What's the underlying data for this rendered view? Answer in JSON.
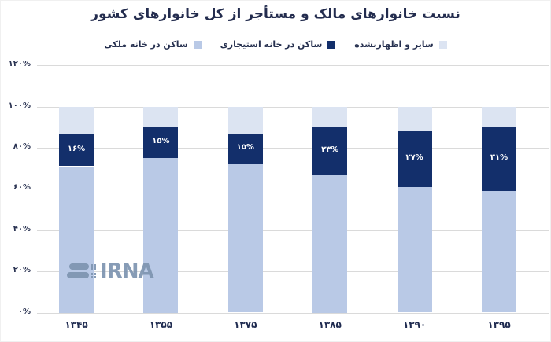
{
  "title": "نسبت خانوارهای مالک و مستأجر از کل خانوارهای کشور",
  "watermark": {
    "text": "IRNA",
    "icon": "irna-logo-icon",
    "color": "#7e95b1"
  },
  "colors": {
    "background": "#ffffff",
    "grid": "#dadada",
    "dark_text": "#232c4e",
    "bar_label_text": "#ffffff"
  },
  "chart_data": {
    "type": "bar",
    "stacked": true,
    "orientation": "vertical",
    "title": "نسبت خانوارهای مالک و مستأجر از کل خانوارهای کشور",
    "categories": [
      "۱۳۴۵",
      "۱۳۵۵",
      "۱۳۷۵",
      "۱۳۸۵",
      "۱۳۹۰",
      "۱۳۹۵"
    ],
    "series": [
      {
        "key": "owner",
        "name": "ساکن در خانه ملکی",
        "color": "#b9c9e6",
        "values": [
          71,
          75,
          72,
          67,
          61,
          59
        ]
      },
      {
        "key": "rented",
        "name": "ساکن در خانه استیجاری",
        "color": "#132f6b",
        "values": [
          16,
          15,
          15,
          23,
          27,
          31
        ],
        "labels": [
          "۱۶%",
          "۱۵%",
          "۱۵%",
          "۲۳%",
          "۲۷%",
          "۳۱%"
        ]
      },
      {
        "key": "other",
        "name": "سایر و اظهارنشده",
        "color": "#dce4f2",
        "values": [
          13,
          10,
          13,
          10,
          12,
          10
        ]
      }
    ],
    "ylim": [
      0,
      120
    ],
    "y_tick_labels": [
      "۰%",
      "۲۰%",
      "۴۰%",
      "۶۰%",
      "۸۰%",
      "۱۰۰%",
      "۱۲۰%"
    ],
    "y_tick_values": [
      0,
      20,
      40,
      60,
      80,
      100,
      120
    ],
    "xlabel": "",
    "ylabel": "",
    "grid": true,
    "legend_position": "top",
    "legend_order_visual_rtl": [
      "سایر و اظهارنشده",
      "ساکن در خانه استیجاری",
      "ساکن در خانه ملکی"
    ]
  }
}
